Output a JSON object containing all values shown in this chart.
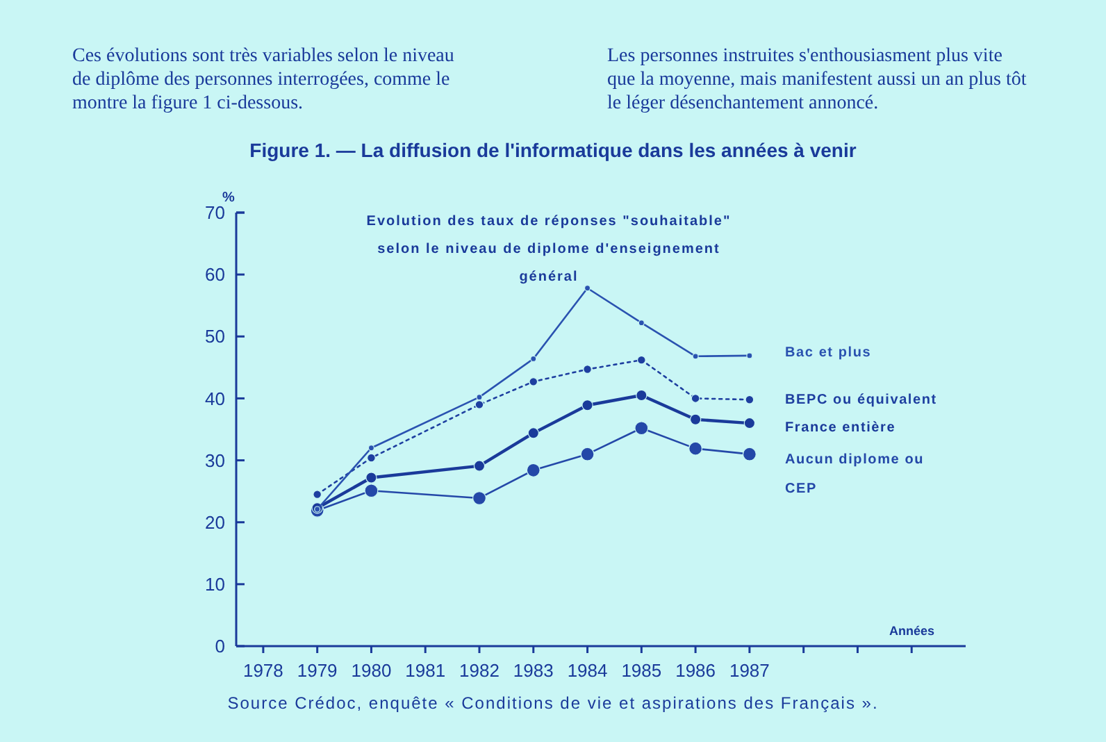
{
  "chart_data": {
    "type": "line",
    "title": "Figure 1. — La diffusion de l'informatique dans les années à venir",
    "subtitle": "Evolution des taux de réponses \"souhaitable\" selon le niveau de diplome d'enseignement général",
    "xlabel": "Années",
    "ylabel": "%",
    "annotations": [
      "Ces évolutions sont très variables selon le niveau de diplôme des personnes interrogées, comme le montre la figure 1 ci-dessous.",
      "Les personnes instruites s'enthousiasment plus vite que la moyenne, mais manifestent aussi un an plus tôt le léger désenchantement annoncé.",
      "Source Crédoc, enquête « Conditions de vie et aspirations des Français »."
    ],
    "x": [
      1979,
      1980,
      1982,
      1983,
      1984,
      1985,
      1986,
      1987
    ],
    "series": [
      {
        "name": "Bac et plus",
        "color": "#2a52b0",
        "line_style": "solid",
        "values": [
          22.1,
          32.0,
          40.2,
          46.4,
          57.8,
          52.2,
          46.8,
          46.9
        ]
      },
      {
        "name": "BEPC ou équivalent",
        "color": "#1e3fa0",
        "line_style": "dotted",
        "values": [
          24.5,
          30.4,
          39.0,
          42.7,
          44.7,
          46.2,
          40.0,
          39.8
        ]
      },
      {
        "name": "France entière",
        "color": "#1a3a9a",
        "line_style": "solid",
        "values": [
          22.3,
          27.2,
          29.1,
          34.4,
          38.9,
          40.5,
          36.6,
          36.0
        ]
      },
      {
        "name": "Aucun diplome ou CEP",
        "color": "#2448a8",
        "line_style": "solid",
        "values": [
          21.9,
          25.1,
          23.9,
          28.4,
          31.0,
          35.2,
          31.9,
          31.0
        ]
      }
    ],
    "marker": "circle",
    "xlim": [
      1977.5,
      1991
    ],
    "xticks": [
      1978,
      1979,
      1980,
      1981,
      1982,
      1983,
      1984,
      1985,
      1986,
      1987,
      {
        "value": 1988,
        "label": null
      },
      {
        "value": 1989,
        "label": null
      },
      {
        "value": 1990,
        "label": null
      }
    ],
    "ylim": [
      0,
      70
    ],
    "yticks": [
      0,
      10,
      20,
      30,
      40,
      50,
      60,
      70
    ],
    "grid": false
  }
}
